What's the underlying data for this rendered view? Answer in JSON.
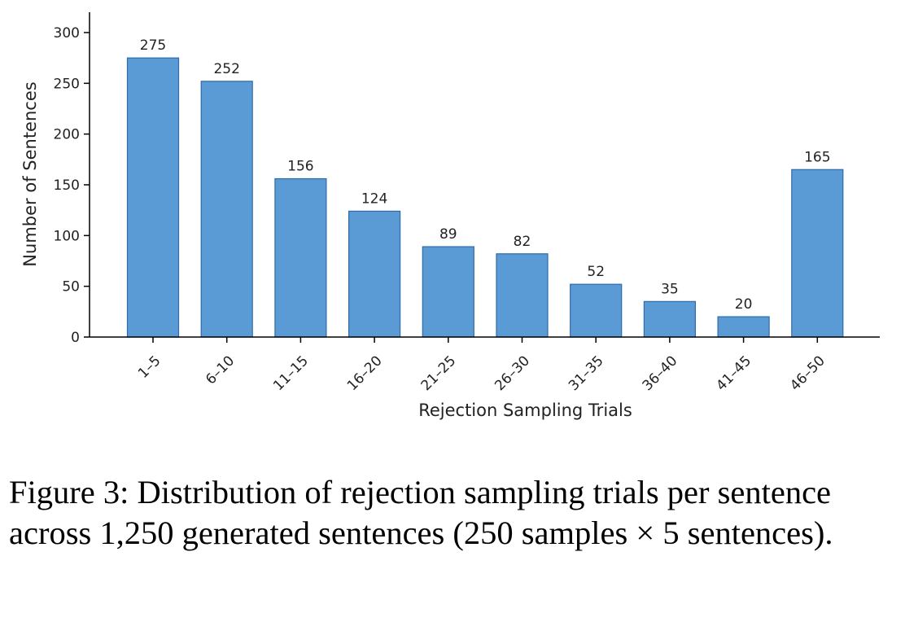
{
  "chart_data": {
    "type": "bar",
    "categories": [
      "1–5",
      "6–10",
      "11–15",
      "16–20",
      "21–25",
      "26–30",
      "31–35",
      "36–40",
      "41–45",
      "46–50"
    ],
    "values": [
      275,
      252,
      156,
      124,
      89,
      82,
      52,
      35,
      20,
      165
    ],
    "data_labels": [
      "275",
      "252",
      "156",
      "124",
      "89",
      "82",
      "52",
      "35",
      "20",
      "165"
    ],
    "xlabel": "Rejection Sampling Trials",
    "ylabel": "Number of Sentences",
    "ylim": [
      0,
      300
    ],
    "yticks": [
      "0",
      "50",
      "100",
      "150",
      "200",
      "250",
      "300"
    ],
    "grid": false,
    "colors": {
      "bar_fill": "#5b9bd5",
      "bar_edge": "#2e6ca8",
      "axis": "#000000",
      "text": "#222222"
    }
  },
  "caption": {
    "figure_label": "Figure 3:",
    "text": "Distribution of rejection sampling trials per sentence across 1,250 generated sentences (250 samples × 5 sentences)."
  }
}
